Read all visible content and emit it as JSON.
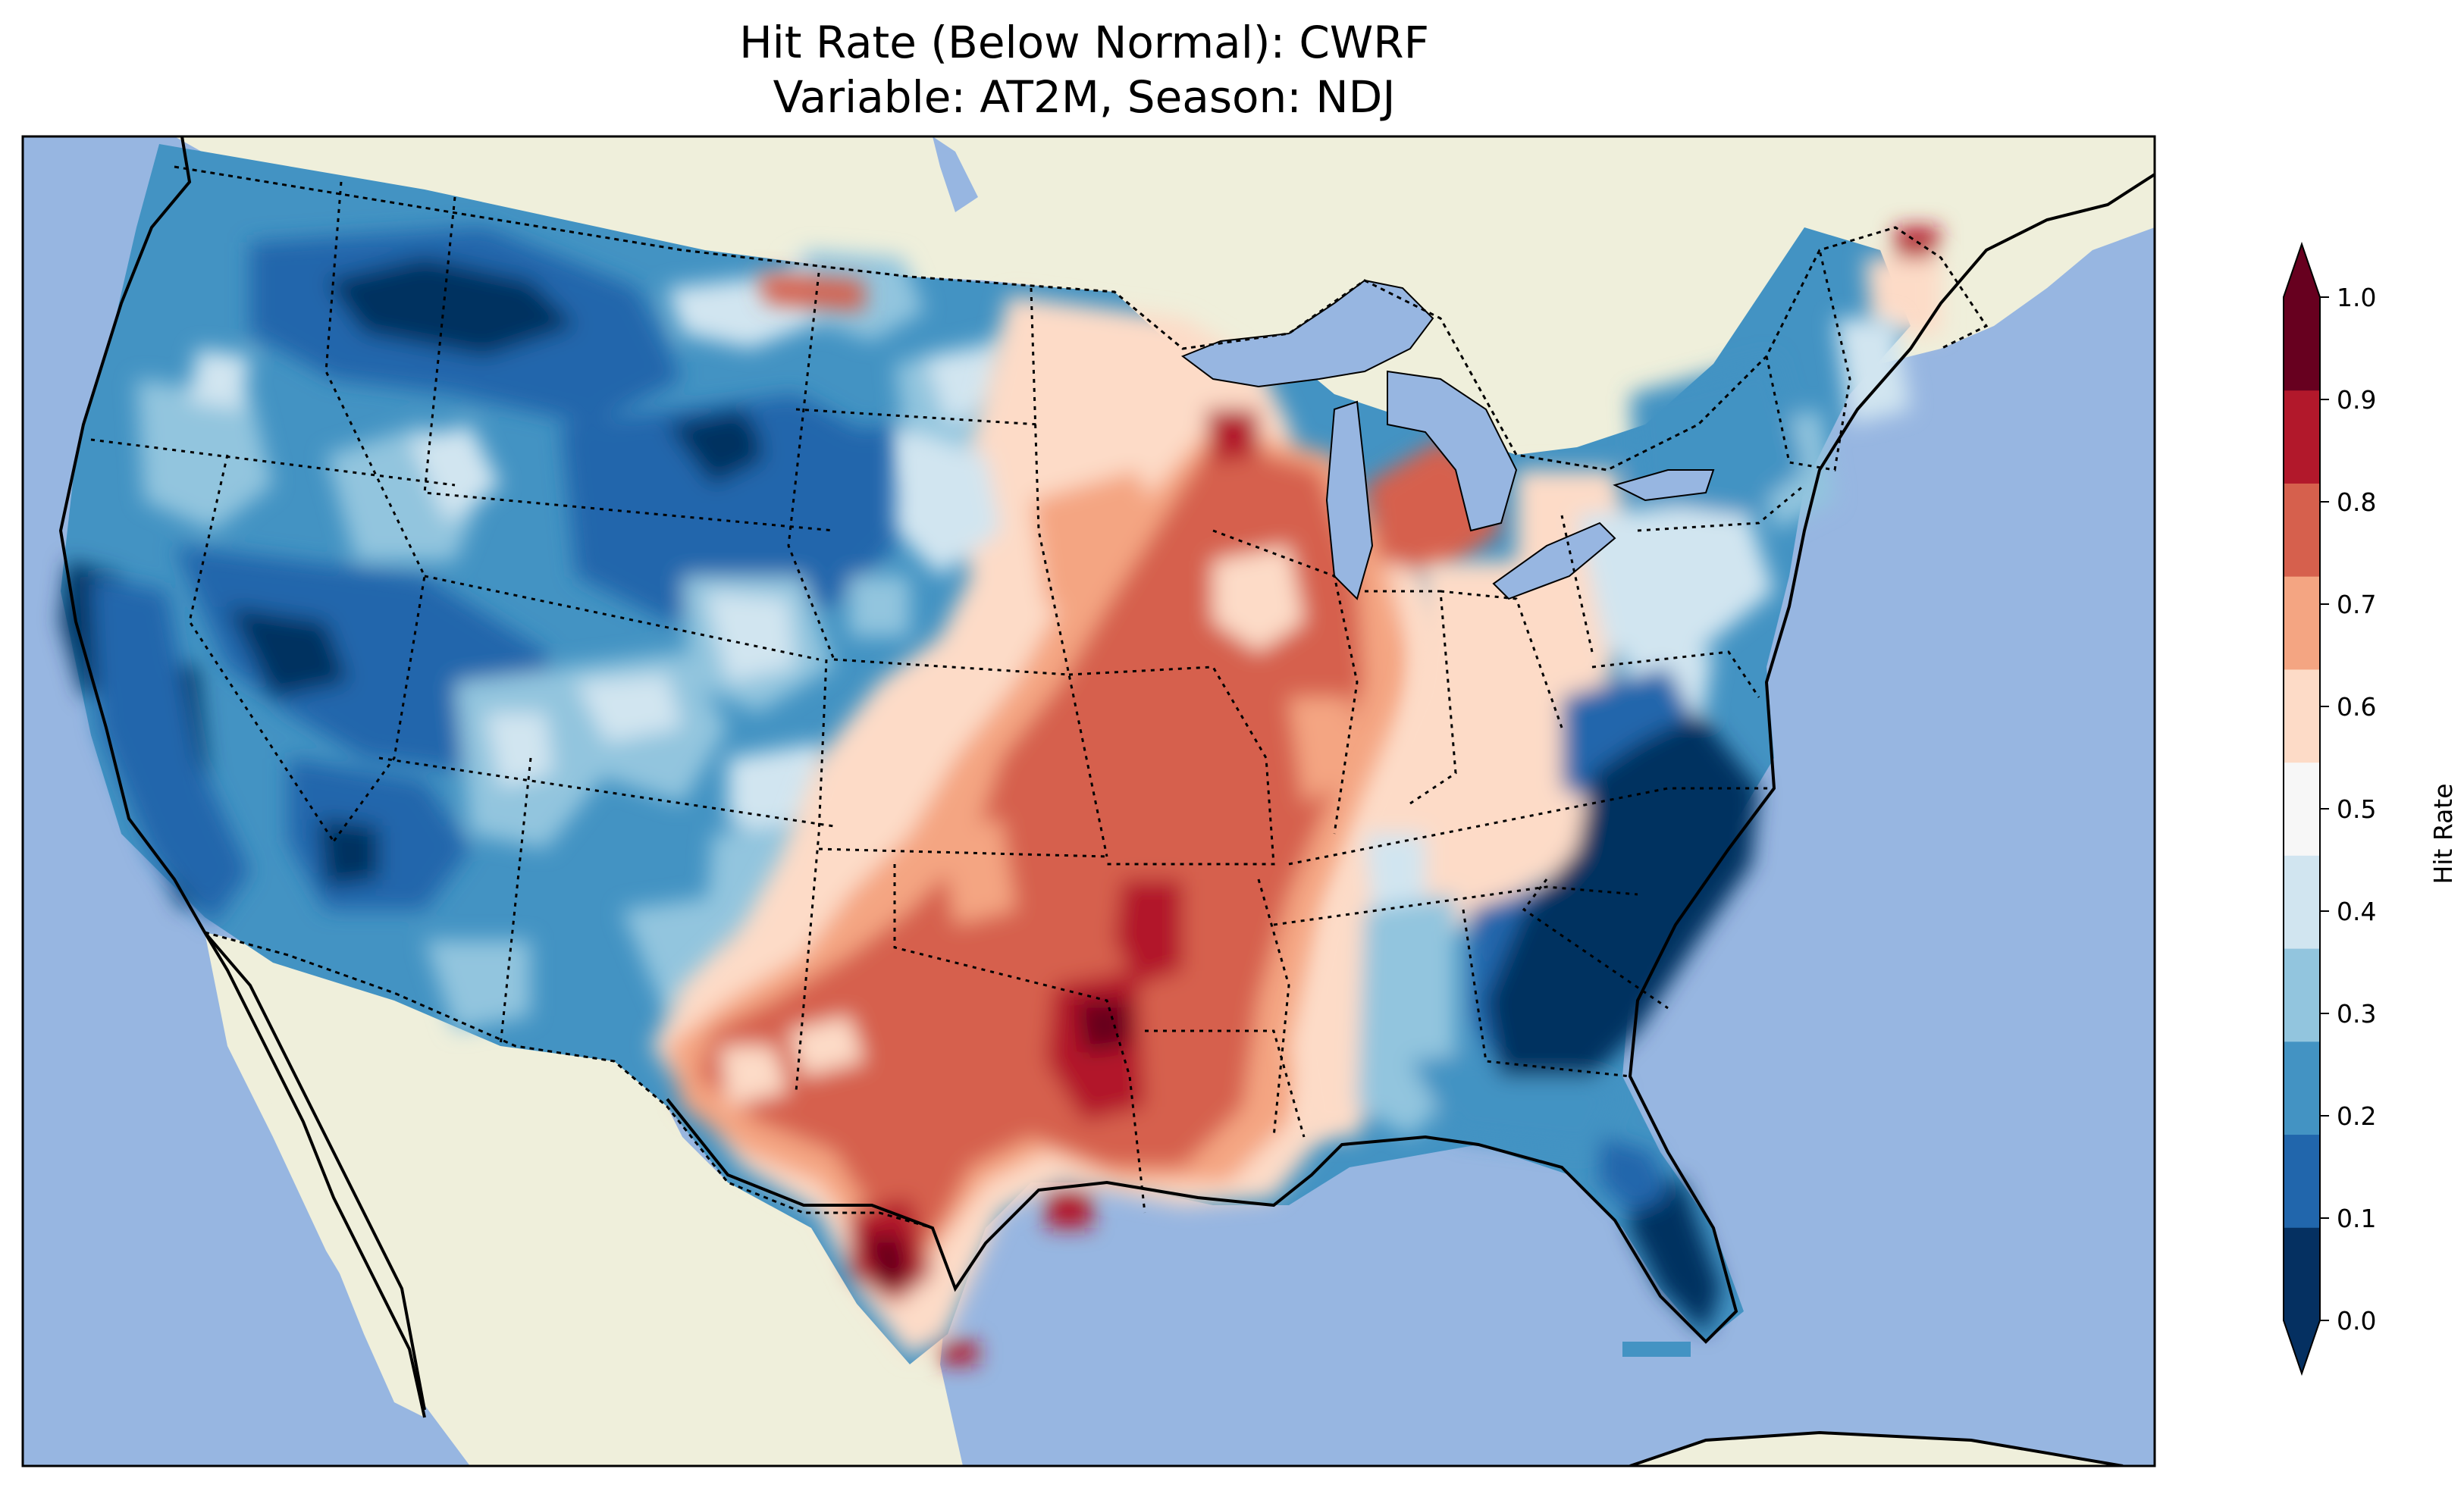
{
  "title": {
    "line1": "Hit Rate (Below Normal): CWRF",
    "line2": "Variable: AT2M, Season: NDJ"
  },
  "colorbar": {
    "label": "Hit Rate",
    "ticks": [
      "0.0",
      "0.1",
      "0.2",
      "0.3",
      "0.4",
      "0.5",
      "0.6",
      "0.7",
      "0.8",
      "0.9",
      "1.0"
    ],
    "colors": [
      "#053061",
      "#2166ac",
      "#4393c3",
      "#92c5de",
      "#d1e5f0",
      "#f7f7f7",
      "#fddbc7",
      "#f4a582",
      "#d6604d",
      "#b2182b",
      "#67001f"
    ],
    "under_color": "#053061",
    "over_color": "#67001f",
    "extend": "both"
  },
  "map": {
    "ocean_color": "#97b6e1",
    "land_color": "#efefdb",
    "lake_color": "#97b6e1",
    "features": [
      "coastlines",
      "country borders",
      "state borders",
      "lakes"
    ]
  }
}
